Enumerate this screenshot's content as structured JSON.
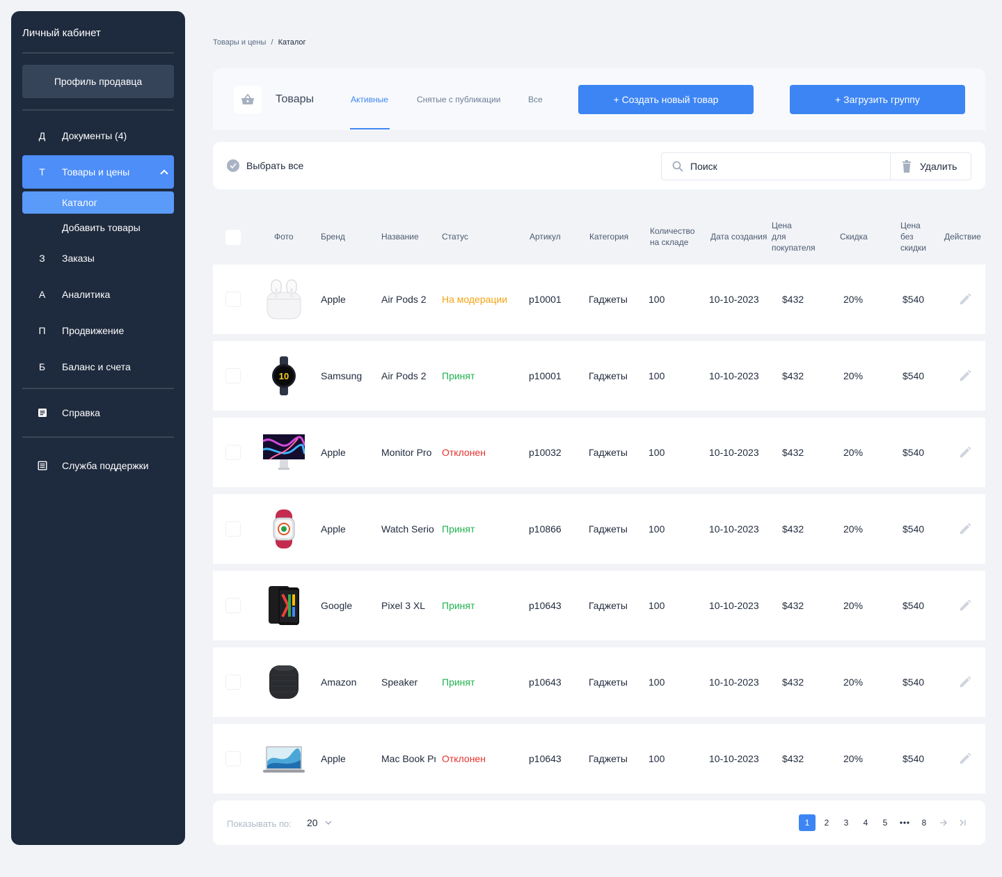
{
  "sidebar": {
    "title": "Личный кабинет",
    "profile": "Профиль продавца",
    "items": [
      {
        "letter": "Д",
        "label": "Документы (4)"
      },
      {
        "letter": "Т",
        "label": "Товары и цены"
      },
      {
        "letter": "З",
        "label": "Заказы"
      },
      {
        "letter": "А",
        "label": "Аналитика"
      },
      {
        "letter": "П",
        "label": "Продвижение"
      },
      {
        "letter": "Б",
        "label": "Баланс и счета"
      }
    ],
    "subitems": [
      "Каталог",
      "Добавить товары"
    ],
    "help": "Справка",
    "support": "Служба поддержки"
  },
  "breadcrumb": {
    "parent": "Товары и цены",
    "separator": "/",
    "current": "Каталог"
  },
  "header": {
    "title": "Товары",
    "tabs": [
      "Активные",
      "Снятые с публикации",
      "Все"
    ],
    "create_button": "+ Создать новый товар",
    "upload_button": "+ Загрузить группу"
  },
  "toolbar": {
    "select_all": "Выбрать все",
    "search_placeholder": "Поиск",
    "delete": "Удалить"
  },
  "table": {
    "columns": {
      "photo": "Фото",
      "brand": "Бренд",
      "name": "Название",
      "status": "Статус",
      "sku": "Артикул",
      "category": "Категория",
      "qty_1": "Количество",
      "qty_2": "на складе",
      "date": "Дата создания",
      "price_1": "Цена",
      "price_2": "для",
      "price_3": "покупателя",
      "discount": "Скидка",
      "full_1": "Цена",
      "full_2": "без",
      "full_3": "скидки",
      "action": "Действие"
    },
    "rows": [
      {
        "brand": "Apple",
        "name": "Air Pods 2",
        "status": "На модерации",
        "sku": "p10001",
        "category": "Гаджеты",
        "qty": "100",
        "date": "10-10-2023",
        "price": "$432",
        "discount": "20%",
        "full_price": "$540"
      },
      {
        "brand": "Samsung",
        "name": "Air Pods 2",
        "status": "Принят",
        "sku": "p10001",
        "category": "Гаджеты",
        "qty": "100",
        "date": "10-10-2023",
        "price": "$432",
        "discount": "20%",
        "full_price": "$540"
      },
      {
        "brand": "Apple",
        "name": "Monitor Pro",
        "status": "Отклонен",
        "sku": "p10032",
        "category": "Гаджеты",
        "qty": "100",
        "date": "10-10-2023",
        "price": "$432",
        "discount": "20%",
        "full_price": "$540"
      },
      {
        "brand": "Apple",
        "name": "Watch Serio",
        "status": "Принят",
        "sku": "p10866",
        "category": "Гаджеты",
        "qty": "100",
        "date": "10-10-2023",
        "price": "$432",
        "discount": "20%",
        "full_price": "$540"
      },
      {
        "brand": "Google",
        "name": "Pixel 3 XL",
        "status": "Принят",
        "sku": "p10643",
        "category": "Гаджеты",
        "qty": "100",
        "date": "10-10-2023",
        "price": "$432",
        "discount": "20%",
        "full_price": "$540"
      },
      {
        "brand": "Amazon",
        "name": "Speaker",
        "status": "Принят",
        "sku": "p10643",
        "category": "Гаджеты",
        "qty": "100",
        "date": "10-10-2023",
        "price": "$432",
        "discount": "20%",
        "full_price": "$540"
      },
      {
        "brand": "Apple",
        "name": "Mac Book Pr",
        "status": "Отклонен",
        "sku": "p10643",
        "category": "Гаджеты",
        "qty": "100",
        "date": "10-10-2023",
        "price": "$432",
        "discount": "20%",
        "full_price": "$540"
      }
    ]
  },
  "footer": {
    "show_label": "Показывать по:",
    "page_size": "20",
    "pages": [
      "1",
      "2",
      "3",
      "4",
      "5",
      "8"
    ]
  },
  "colors": {
    "sidebar_bg": "#1e2a3d",
    "accent": "#3d85f4",
    "status_moderation": "#f3a312",
    "status_accepted": "#1fb24e",
    "status_rejected": "#e5322d"
  }
}
